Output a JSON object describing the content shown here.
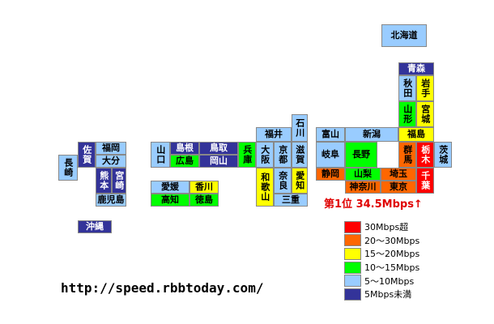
{
  "prefectures": [
    {
      "label": "北海道",
      "color": "#99ccff"
    },
    {
      "label": "青森",
      "color": "#333399"
    },
    {
      "label": "秋田",
      "color": "#99ccff"
    },
    {
      "label": "岩手",
      "color": "#ffff00"
    },
    {
      "label": "山形",
      "color": "#00ff00"
    },
    {
      "label": "宮城",
      "color": "#ffff00"
    },
    {
      "label": "福島",
      "color": "#ffff00"
    },
    {
      "label": "新潟",
      "color": "#99ccff"
    },
    {
      "label": "富山",
      "color": "#99ccff"
    },
    {
      "label": "石川",
      "color": "#99ccff"
    },
    {
      "label": "福井",
      "color": "#99ccff"
    },
    {
      "label": "群馬",
      "color": "#ff6600"
    },
    {
      "label": "栃木",
      "color": "#ff0000"
    },
    {
      "label": "茨城",
      "color": "#99ccff"
    },
    {
      "label": "長野",
      "color": "#00ff00"
    },
    {
      "label": "岐阜",
      "color": "#99ccff"
    },
    {
      "label": "滋賀",
      "color": "#99ccff"
    },
    {
      "label": "京都",
      "color": "#99ccff"
    },
    {
      "label": "大阪",
      "color": "#99ccff"
    },
    {
      "label": "兵庫",
      "color": "#00ff00"
    },
    {
      "label": "鳥取",
      "color": "#333399"
    },
    {
      "label": "島根",
      "color": "#333399"
    },
    {
      "label": "岡山",
      "color": "#333399"
    },
    {
      "label": "広島",
      "color": "#00ff00"
    },
    {
      "label": "山口",
      "color": "#99ccff"
    },
    {
      "label": "埼玉",
      "color": "#ff6600"
    },
    {
      "label": "千葉",
      "color": "#ff0000"
    },
    {
      "label": "東京",
      "color": "#ff6600"
    },
    {
      "label": "山梨",
      "color": "#00ff00"
    },
    {
      "label": "神奈川",
      "color": "#ff6600"
    },
    {
      "label": "静岡",
      "color": "#ff6600"
    },
    {
      "label": "愛知",
      "color": "#ffff00"
    },
    {
      "label": "奈良",
      "color": "#99ccff"
    },
    {
      "label": "和歌山",
      "color": "#ffff00"
    },
    {
      "label": "三重",
      "color": "#99ccff"
    },
    {
      "label": "愛媛",
      "color": "#99ccff"
    },
    {
      "label": "香川",
      "color": "#ffff00"
    },
    {
      "label": "高知",
      "color": "#00ff00"
    },
    {
      "label": "徳島",
      "color": "#00ff00"
    },
    {
      "label": "福岡",
      "color": "#99ccff"
    },
    {
      "label": "佐賀",
      "color": "#333399"
    },
    {
      "label": "大分",
      "color": "#99ccff"
    },
    {
      "label": "長崎",
      "color": "#99ccff"
    },
    {
      "label": "熊本",
      "color": "#333399"
    },
    {
      "label": "宮崎",
      "color": "#333399"
    },
    {
      "label": "鹿児島",
      "color": "#99ccff"
    },
    {
      "label": "沖縄",
      "color": "#333399"
    }
  ],
  "annotation": "第1位 34.5Mbps↑",
  "legend": [
    {
      "label": "30Mbps超",
      "color": "#ff0000"
    },
    {
      "label": "20～30Mbps",
      "color": "#ff6600"
    },
    {
      "label": "15～20Mbps",
      "color": "#ffff00"
    },
    {
      "label": "10～15Mbps",
      "color": "#00ff00"
    },
    {
      "label": "5～10Mbps",
      "color": "#99ccff"
    },
    {
      "label": "5Mbps未満",
      "color": "#333399"
    }
  ],
  "url": "http://speed.rbbtoday.com/"
}
